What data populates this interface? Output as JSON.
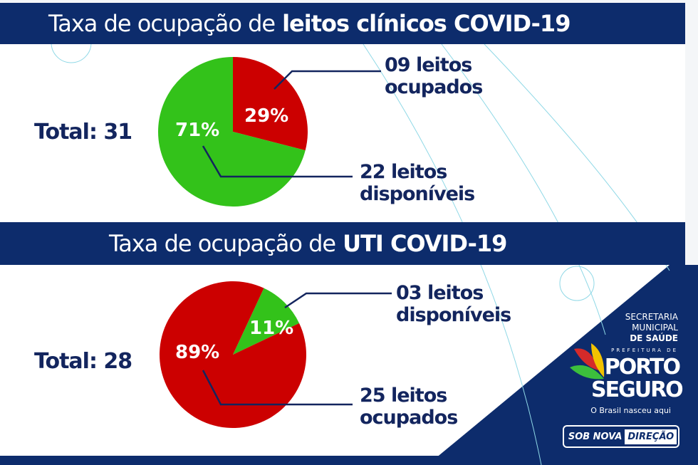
{
  "chart_data": [
    {
      "type": "pie",
      "title_regular": "Taxa de ocupação de",
      "title_bold": "leitos clínicos COVID-19",
      "total_label": "Total: 31",
      "slices": [
        {
          "name": "ocupados",
          "value": 29,
          "label": "29%",
          "color": "#cc0000",
          "callout": [
            "09 leitos",
            "ocupados"
          ]
        },
        {
          "name": "disponíveis",
          "value": 71,
          "label": "71%",
          "color": "#33c21a",
          "callout": [
            "22 leitos",
            "disponíveis"
          ]
        }
      ]
    },
    {
      "type": "pie",
      "title_regular": "Taxa de ocupação de",
      "title_bold": "UTI COVID-19",
      "total_label": "Total: 28",
      "slices": [
        {
          "name": "disponíveis",
          "value": 11,
          "label": "11%",
          "color": "#33c21a",
          "callout": [
            "03 leitos",
            "disponíveis"
          ]
        },
        {
          "name": "ocupados",
          "value": 89,
          "label": "89%",
          "color": "#cc0000",
          "callout": [
            "25 leitos",
            "ocupados"
          ]
        }
      ]
    }
  ],
  "logo": {
    "secretaria": [
      "SECRETARIA",
      "MUNICIPAL",
      "DE SAÚDE"
    ],
    "prefeitura": "PREFEITURA DE",
    "city1": "PORTO",
    "city2": "SEGURO",
    "slogan": "O Brasil nasceu aqui",
    "badge1": "SOB NOVA",
    "badge2": "DIREÇÃO"
  },
  "colors": {
    "navy": "#0d2c6c",
    "red": "#cc0000",
    "green": "#33c21a"
  }
}
